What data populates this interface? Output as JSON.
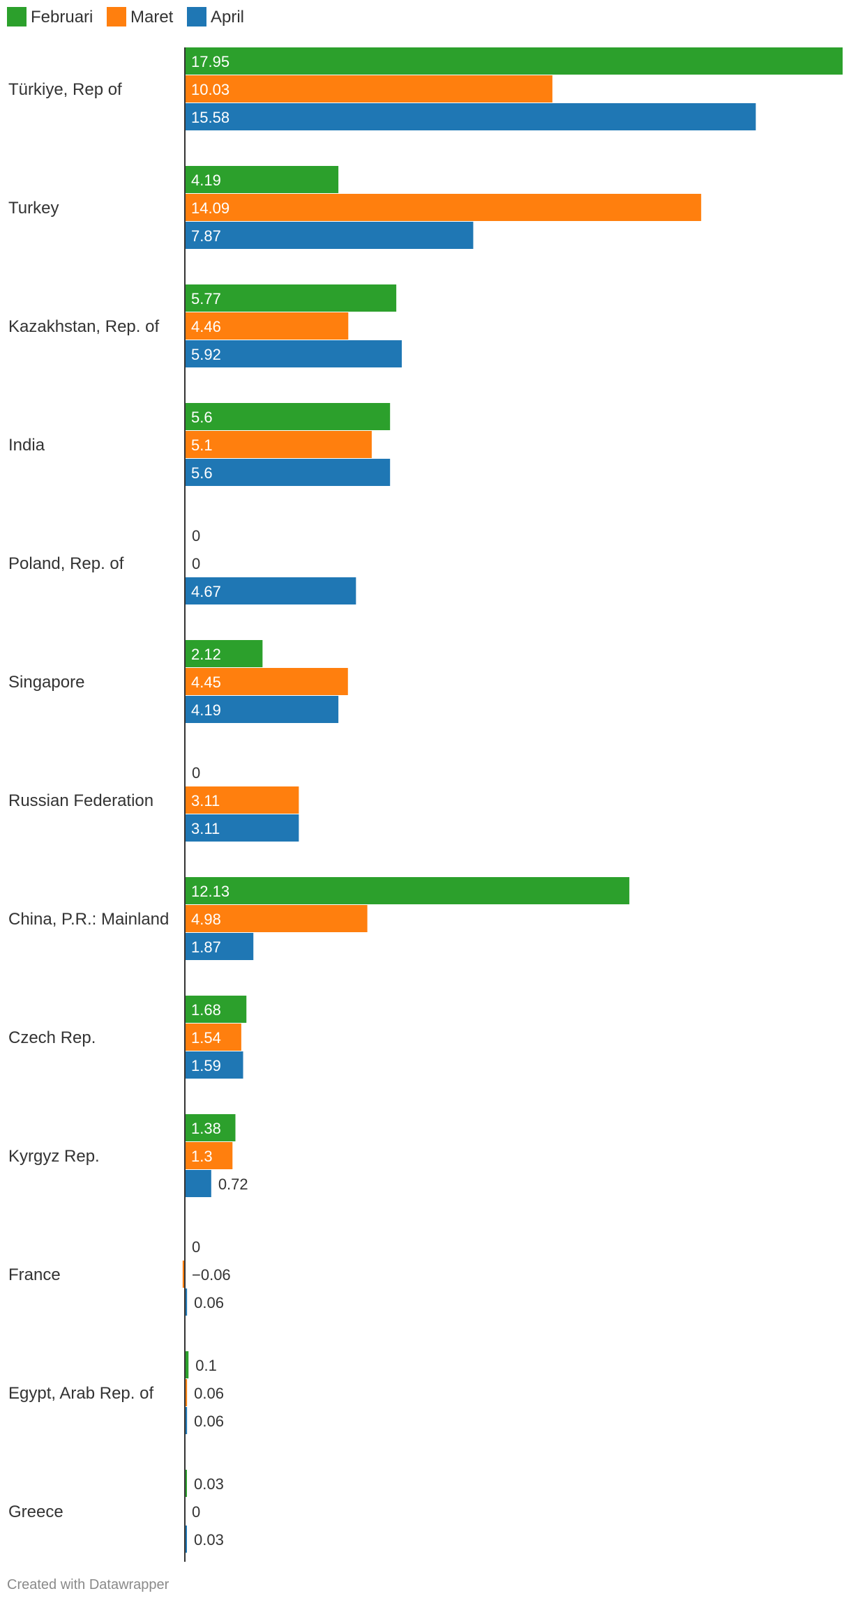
{
  "chart_data": {
    "type": "bar",
    "orientation": "horizontal",
    "categories": [
      "Türkiye, Rep of",
      "Turkey",
      "Kazakhstan, Rep. of",
      "India",
      "Poland, Rep. of",
      "Singapore",
      "Russian Federation",
      "China, P.R.: Mainland",
      "Czech Rep.",
      "Kyrgyz Rep.",
      "France",
      "Egypt, Arab Rep. of",
      "Greece"
    ],
    "series": [
      {
        "name": "Februari",
        "color": "#2ca02c",
        "values": [
          17.95,
          4.19,
          5.77,
          5.6,
          0,
          2.12,
          0,
          12.13,
          1.68,
          1.38,
          0,
          0.1,
          0.03
        ]
      },
      {
        "name": "Maret",
        "color": "#ff7f0e",
        "values": [
          10.03,
          14.09,
          4.46,
          5.1,
          0,
          4.45,
          3.11,
          4.98,
          1.54,
          1.3,
          -0.06,
          0.06,
          0
        ]
      },
      {
        "name": "April",
        "color": "#1f77b4",
        "values": [
          15.58,
          7.87,
          5.92,
          5.6,
          4.67,
          4.19,
          3.11,
          1.87,
          1.59,
          0.72,
          0.06,
          0.06,
          0.03
        ]
      }
    ],
    "xlim": [
      0,
      17.95
    ],
    "legend_position": "top-left",
    "grid": false,
    "title": "",
    "xlabel": "",
    "ylabel": ""
  },
  "footer": {
    "credit": "Created with Datawrapper"
  }
}
